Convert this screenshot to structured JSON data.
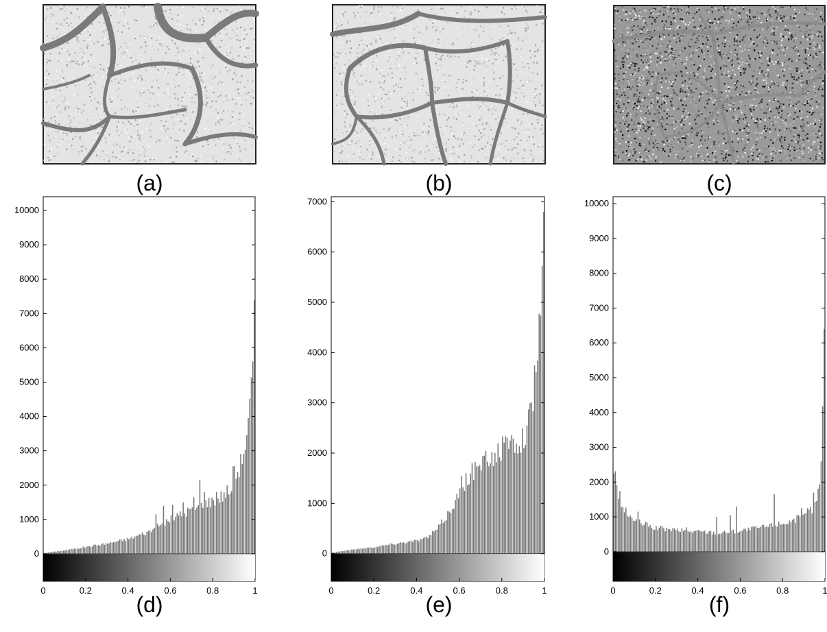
{
  "images": [
    {
      "label": "(a)",
      "texture": "sparse-light-noise",
      "crack_color": "#7a7a7a"
    },
    {
      "label": "(b)",
      "texture": "sparse-light-noise",
      "crack_color": "#7a7a7a"
    },
    {
      "label": "(c)",
      "texture": "dense-dark-noise",
      "crack_color": "#8c8c8c"
    }
  ],
  "chart_data": [
    {
      "type": "bar",
      "label": "(d)",
      "title": "",
      "xlabel": "",
      "ylabel": "",
      "xlim": [
        0,
        1
      ],
      "ylim": [
        -800,
        10400
      ],
      "xticks": [
        "0",
        "0.2",
        "0.4",
        "0.6",
        "0.8",
        "1"
      ],
      "yticks": [
        "0",
        "1000",
        "2000",
        "3000",
        "4000",
        "5000",
        "6000",
        "7000",
        "8000",
        "9000",
        "10000"
      ],
      "colorbar": "grayscale black-to-white below axis",
      "anchors": [
        [
          0,
          20
        ],
        [
          0.1,
          100
        ],
        [
          0.2,
          200
        ],
        [
          0.3,
          300
        ],
        [
          0.4,
          430
        ],
        [
          0.5,
          650
        ],
        [
          0.6,
          1000
        ],
        [
          0.7,
          1300
        ],
        [
          0.8,
          1550
        ],
        [
          0.85,
          1700
        ],
        [
          0.9,
          2100
        ],
        [
          0.93,
          2600
        ],
        [
          0.95,
          3100
        ],
        [
          0.97,
          3800
        ],
        [
          0.99,
          5500
        ],
        [
          1,
          7400
        ]
      ],
      "spikes": [
        [
          0.74,
          2150
        ],
        [
          0.76,
          1800
        ],
        [
          0.71,
          1650
        ],
        [
          0.82,
          1800
        ],
        [
          0.88,
          1750
        ],
        [
          0.9,
          2550
        ],
        [
          0.57,
          1400
        ],
        [
          0.61,
          1420
        ],
        [
          0.53,
          1150
        ],
        [
          0.66,
          1500
        ]
      ],
      "bins": 140
    },
    {
      "type": "bar",
      "label": "(e)",
      "title": "",
      "xlabel": "",
      "ylabel": "",
      "xlim": [
        0,
        1
      ],
      "ylim": [
        -550,
        7100
      ],
      "xticks": [
        "0",
        "0.2",
        "0.4",
        "0.6",
        "0.8",
        "1"
      ],
      "yticks": [
        "0",
        "1000",
        "2000",
        "3000",
        "4000",
        "5000",
        "6000",
        "7000"
      ],
      "colorbar": "grayscale black-to-white below axis",
      "anchors": [
        [
          0,
          20
        ],
        [
          0.1,
          80
        ],
        [
          0.2,
          130
        ],
        [
          0.3,
          200
        ],
        [
          0.4,
          260
        ],
        [
          0.45,
          320
        ],
        [
          0.5,
          500
        ],
        [
          0.55,
          800
        ],
        [
          0.6,
          1200
        ],
        [
          0.65,
          1550
        ],
        [
          0.7,
          1750
        ],
        [
          0.75,
          1900
        ],
        [
          0.8,
          2100
        ],
        [
          0.85,
          2200
        ],
        [
          0.9,
          2300
        ],
        [
          0.93,
          2700
        ],
        [
          0.95,
          3200
        ],
        [
          0.97,
          4200
        ],
        [
          0.99,
          5600
        ],
        [
          1,
          6800
        ]
      ],
      "spikes": [
        [
          0.61,
          1550
        ],
        [
          0.66,
          1800
        ],
        [
          0.72,
          1950
        ],
        [
          0.84,
          2250
        ],
        [
          0.92,
          2550
        ],
        [
          0.63,
          1600
        ]
      ],
      "bins": 140
    },
    {
      "type": "bar",
      "label": "(f)",
      "title": "",
      "xlabel": "",
      "ylabel": "",
      "xlim": [
        0,
        1
      ],
      "ylim": [
        -850,
        10200
      ],
      "xticks": [
        "0",
        "0.2",
        "0.4",
        "0.6",
        "0.8",
        "1"
      ],
      "yticks": [
        "0",
        "1000",
        "2000",
        "3000",
        "4000",
        "5000",
        "6000",
        "7000",
        "8000",
        "9000",
        "10000"
      ],
      "colorbar": "grayscale black-to-white below axis",
      "anchors": [
        [
          0,
          2500
        ],
        [
          0.02,
          1800
        ],
        [
          0.05,
          1200
        ],
        [
          0.1,
          900
        ],
        [
          0.15,
          780
        ],
        [
          0.2,
          680
        ],
        [
          0.3,
          620
        ],
        [
          0.4,
          580
        ],
        [
          0.5,
          550
        ],
        [
          0.6,
          600
        ],
        [
          0.7,
          700
        ],
        [
          0.8,
          820
        ],
        [
          0.9,
          1000
        ],
        [
          0.95,
          1300
        ],
        [
          0.98,
          2000
        ],
        [
          1,
          6400
        ]
      ],
      "spikes": [
        [
          0.12,
          1150
        ],
        [
          0.49,
          1000
        ],
        [
          0.55,
          1050
        ],
        [
          0.58,
          1300
        ],
        [
          0.76,
          1650
        ],
        [
          0.89,
          1250
        ],
        [
          0.92,
          1250
        ],
        [
          0.95,
          1700
        ],
        [
          0.35,
          700
        ]
      ],
      "bins": 140
    }
  ]
}
